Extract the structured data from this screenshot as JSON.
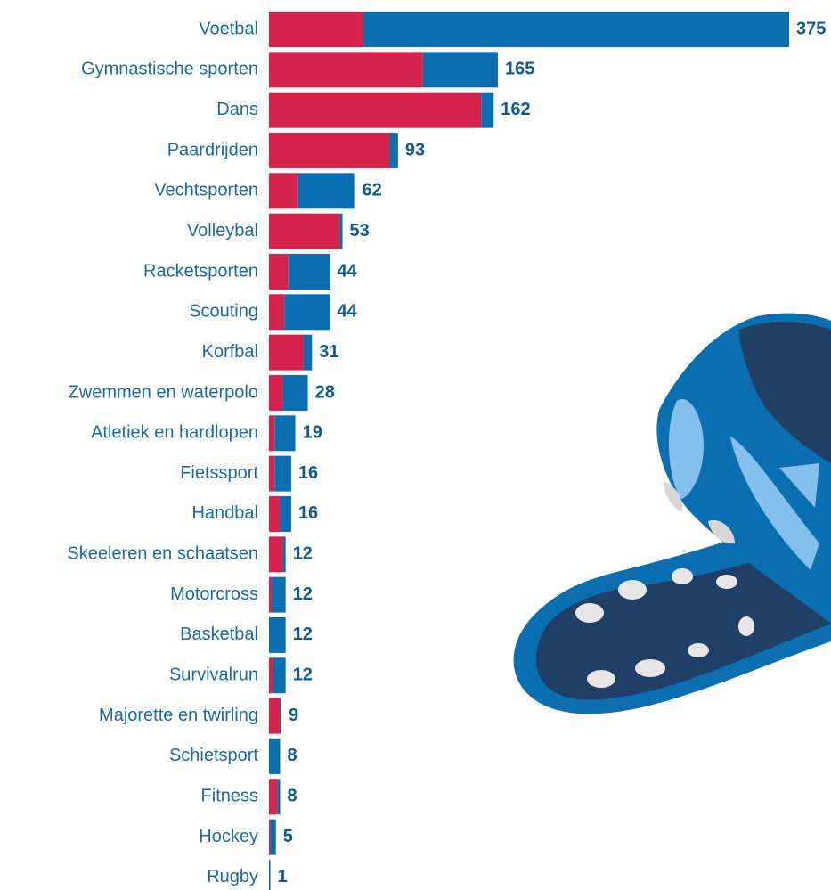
{
  "chart_data": {
    "type": "stacked-barh",
    "categories": [
      "Voetbal",
      "Gymnastische sporten",
      "Dans",
      "Paardrijden",
      "Vechtsporten",
      "Volleybal",
      "Racketsporten",
      "Scouting",
      "Korfbal",
      "Zwemmen en waterpolo",
      "Atletiek en hardlopen",
      "Fietssport",
      "Handbal",
      "Skeeleren en schaatsen",
      "Motorcross",
      "Basketbal",
      "Survivalrun",
      "Majorette en twirling",
      "Schietsport",
      "Fitness",
      "Hockey",
      "Rugby"
    ],
    "series": [
      {
        "color": "#d6234b",
        "values": [
          68,
          111,
          153,
          87,
          21,
          51,
          14,
          11,
          25,
          10,
          4,
          4,
          8,
          10,
          2,
          0,
          3,
          8,
          0,
          6,
          1,
          0
        ]
      },
      {
        "color": "#0a6fb0",
        "values": [
          307,
          54,
          9,
          6,
          41,
          2,
          30,
          33,
          6,
          18,
          15,
          12,
          8,
          2,
          10,
          12,
          9,
          1,
          8,
          2,
          4,
          1
        ]
      }
    ],
    "totals": [
      375,
      165,
      162,
      93,
      62,
      53,
      44,
      44,
      31,
      28,
      19,
      16,
      16,
      12,
      12,
      12,
      12,
      9,
      8,
      8,
      5,
      1
    ]
  }
}
